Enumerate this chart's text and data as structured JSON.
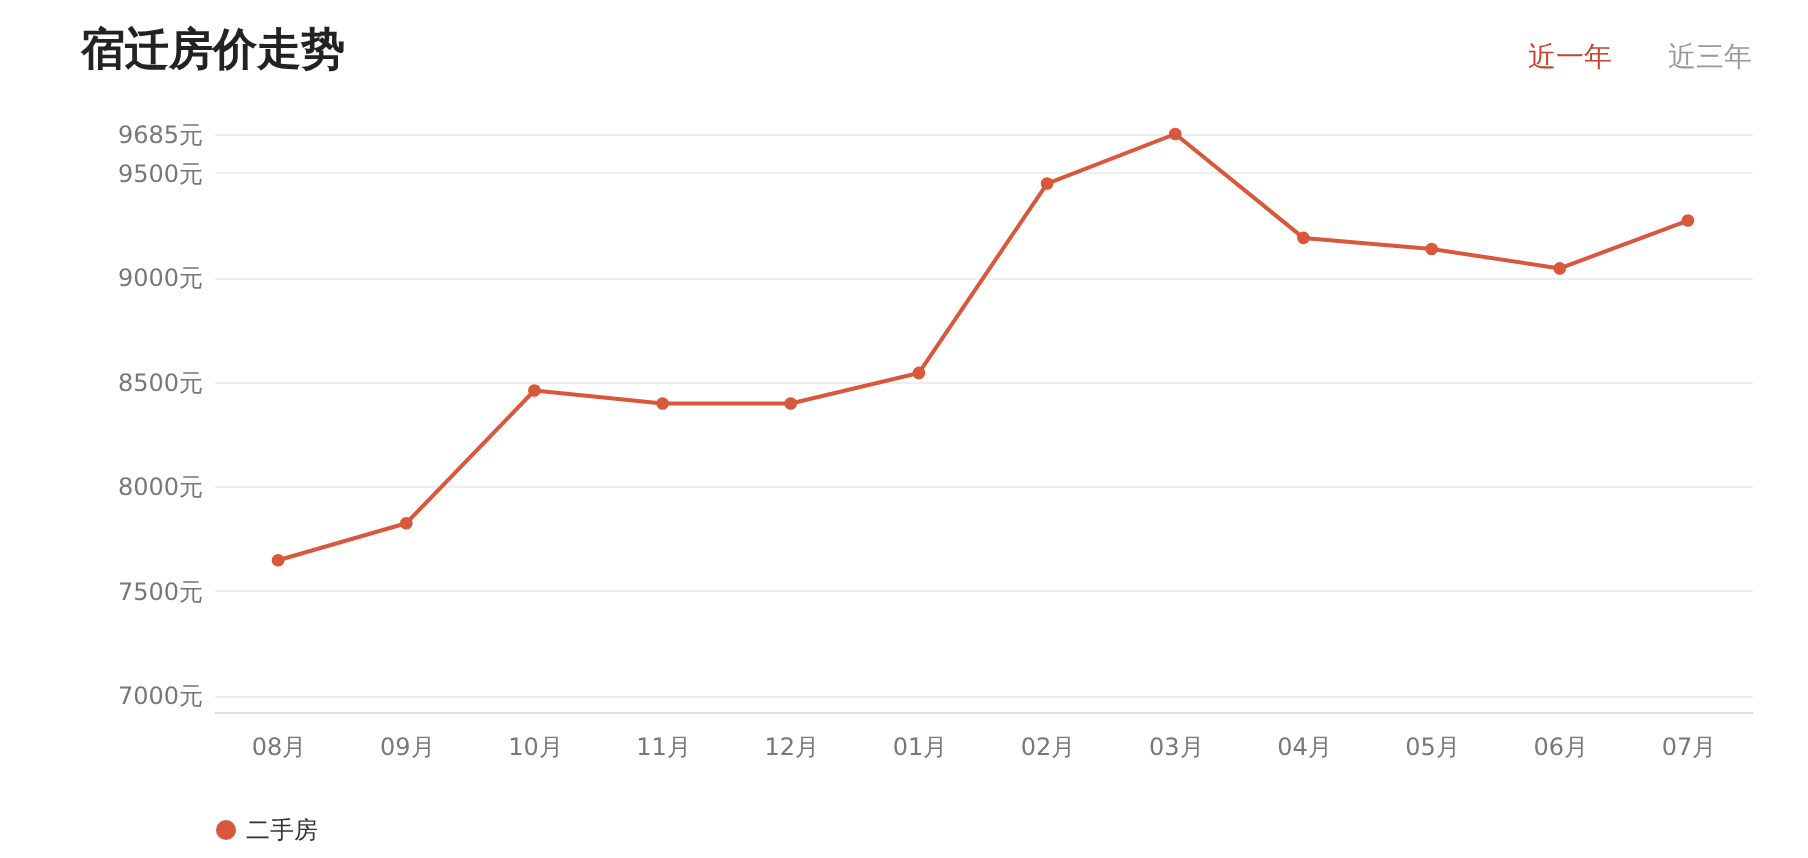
{
  "chart_data": {
    "type": "line",
    "title": "宿迁房价走势",
    "annotations": [
      "近一年",
      "近三年"
    ],
    "categories": [
      "08月",
      "09月",
      "10月",
      "11月",
      "12月",
      "01月",
      "02月",
      "03月",
      "04月",
      "05月",
      "06月",
      "07月"
    ],
    "series": [
      {
        "name": "二手房",
        "color": "#d9573a",
        "values": [
          7646,
          7823,
          8458,
          8396,
          8396,
          8542,
          9448,
          9685,
          9188,
          9135,
          9042,
          9271
        ]
      }
    ],
    "ylim": [
      6920,
      9685
    ],
    "yticks": [
      {
        "value": 7000,
        "label": "7000元"
      },
      {
        "value": 7500,
        "label": "7500元"
      },
      {
        "value": 8000,
        "label": "8000元"
      },
      {
        "value": 8500,
        "label": "8500元"
      },
      {
        "value": 9000,
        "label": "9000元"
      },
      {
        "value": 9500,
        "label": "9500元"
      },
      {
        "value": 9685,
        "label": "9685元"
      }
    ],
    "grid": "y",
    "legend": "bottom",
    "marker": "circle"
  }
}
